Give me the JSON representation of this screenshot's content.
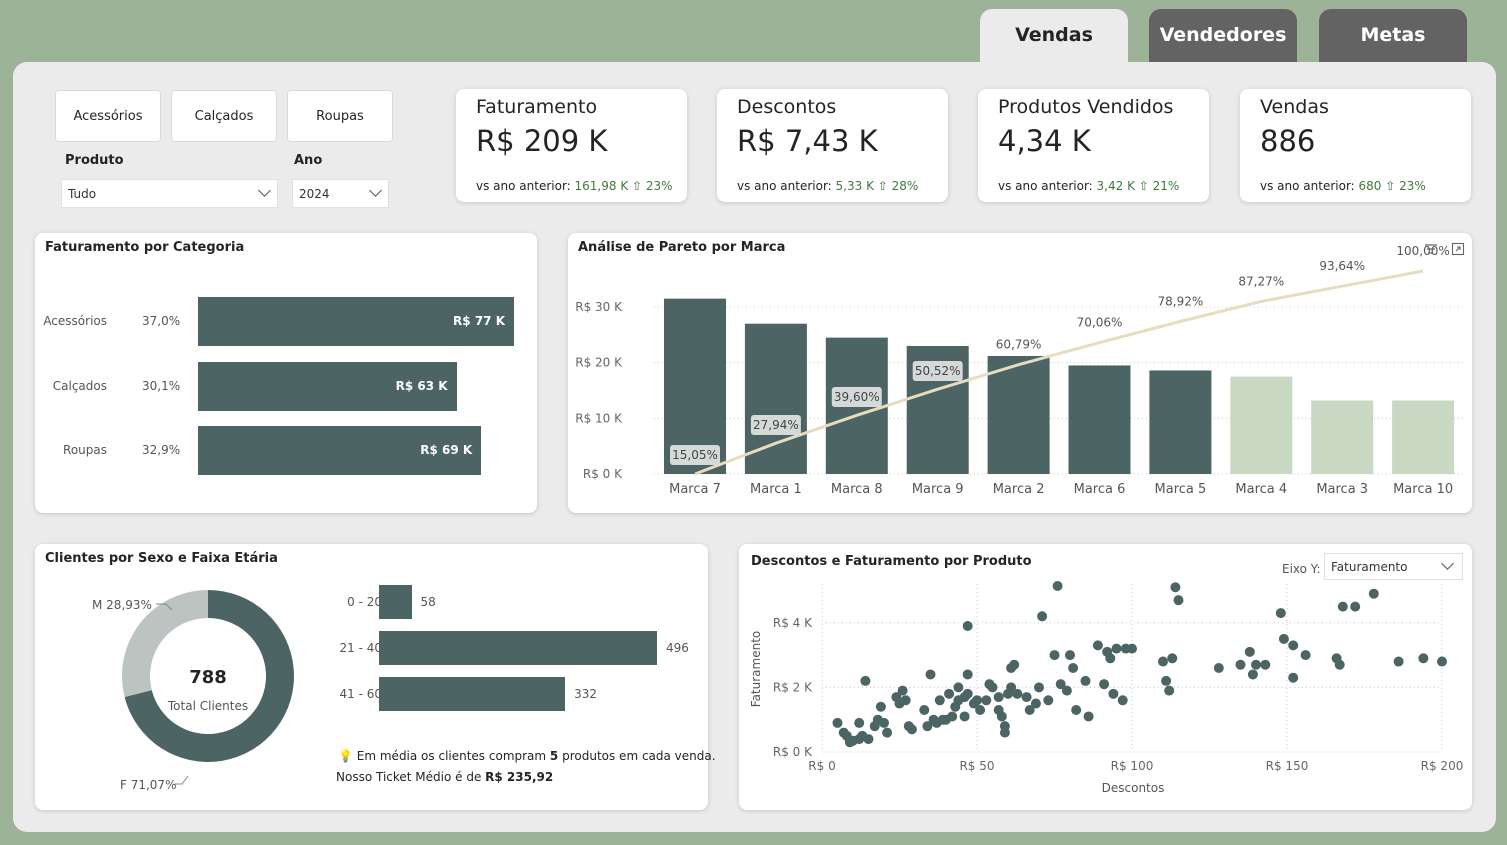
{
  "tabs": [
    {
      "label": "Vendas",
      "active": true
    },
    {
      "label": "Vendedores",
      "active": false
    },
    {
      "label": "Metas",
      "active": false
    }
  ],
  "filters": {
    "category_buttons": [
      "Acessórios",
      "Calçados",
      "Roupas"
    ],
    "produto": {
      "label": "Produto",
      "value": "Tudo"
    },
    "ano": {
      "label": "Ano",
      "value": "2024"
    }
  },
  "kpis": [
    {
      "title": "Faturamento",
      "value": "R$ 209 K",
      "prefix": "vs ano anterior: ",
      "delta": "161,98 K ⇧ 23%"
    },
    {
      "title": "Descontos",
      "value": "R$ 7,43 K",
      "prefix": "vs ano anterior: ",
      "delta": "5,33 K ⇧ 28%"
    },
    {
      "title": "Produtos Vendidos",
      "value": "4,34 K",
      "prefix": "vs ano anterior: ",
      "delta": "3,42 K ⇧ 21%"
    },
    {
      "title": "Vendas",
      "value": "886",
      "prefix": "vs ano anterior: ",
      "delta": "680 ⇧ 23%"
    }
  ],
  "colors": {
    "dark_bar": "#4d6464",
    "light_bar": "#c9d8c3",
    "line": "#e6dcbf",
    "donut_light": "#bcc3c1",
    "positive": "#3f7a3f"
  },
  "categoria": {
    "title": "Faturamento por Categoria",
    "chart_data": {
      "type": "bar",
      "orientation": "horizontal",
      "categories": [
        "Acessórios",
        "Calçados",
        "Roupas"
      ],
      "values": [
        77,
        63,
        69
      ],
      "value_labels": [
        "R$ 77 K",
        "R$ 63 K",
        "R$ 69 K"
      ],
      "share_labels": [
        "37,0%",
        "30,1%",
        "32,9%"
      ]
    }
  },
  "pareto": {
    "title": "Análise de Pareto por Marca",
    "chart_data": {
      "type": "bar",
      "categories": [
        "Marca 7",
        "Marca 1",
        "Marca 8",
        "Marca 9",
        "Marca 2",
        "Marca 6",
        "Marca 5",
        "Marca 4",
        "Marca 3",
        "Marca 10"
      ],
      "values": [
        31.5,
        27,
        24.5,
        23,
        21.2,
        19.5,
        18.6,
        17.5,
        13.2,
        13.2
      ],
      "highlight": [
        true,
        true,
        true,
        true,
        true,
        true,
        true,
        false,
        false,
        false
      ],
      "cumulative_pct": [
        15.05,
        27.94,
        39.6,
        50.52,
        60.79,
        70.06,
        78.92,
        87.27,
        93.64,
        100.0
      ],
      "cumulative_labels": [
        "15,05%",
        "27,94%",
        "39,60%",
        "50,52%",
        "60,79%",
        "70,06%",
        "78,92%",
        "87,27%",
        "93,64%",
        "100,00%"
      ],
      "y_ticks": [
        "R$ 0 K",
        "R$ 10 K",
        "R$ 20 K",
        "R$ 30 K"
      ],
      "y_tick_values": [
        0,
        10,
        20,
        30
      ],
      "ylim": [
        0,
        30
      ],
      "boxed_labels": [
        0,
        1,
        2,
        3
      ]
    }
  },
  "clientes": {
    "title": "Clientes por Sexo e Faixa Etária",
    "total": "788",
    "total_label": "Total Clientes",
    "donut": {
      "chart_data": {
        "type": "pie",
        "categories": [
          "F",
          "M"
        ],
        "values": [
          71.07,
          28.93
        ],
        "labels": [
          "F 71,07%",
          "M 28,93%"
        ]
      }
    },
    "ages": {
      "chart_data": {
        "type": "bar",
        "orientation": "horizontal",
        "categories": [
          "0 - 20",
          "21 - 40",
          "41 - 60"
        ],
        "values": [
          58,
          496,
          332
        ]
      }
    },
    "note_line1_pre": "Em média os clientes compram ",
    "note_line1_bold": "5",
    "note_line1_post": " produtos em cada venda.",
    "note_line2_pre": "Nosso Ticket Médio é de ",
    "note_line2_bold": "R$ 235,92",
    "note_icon": "lightbulb-icon"
  },
  "descontos": {
    "title": "Descontos e Faturamento por Produto",
    "eixo_label": "Eixo Y:",
    "eixo_value": "Faturamento",
    "chart_data": {
      "type": "scatter",
      "xlabel": "Descontos",
      "ylabel": "Faturamento",
      "x_ticks": [
        "R$ 0",
        "R$ 50",
        "R$ 100",
        "R$ 150",
        "R$ 200"
      ],
      "x_tick_values": [
        0,
        50,
        100,
        150,
        200
      ],
      "y_ticks": [
        "R$ 0 K",
        "R$ 2 K",
        "R$ 4 K"
      ],
      "y_tick_values": [
        0,
        2,
        4
      ],
      "xlim": [
        0,
        200
      ],
      "ylim": [
        0,
        5.2
      ],
      "points": [
        [
          5,
          0.9
        ],
        [
          7,
          0.6
        ],
        [
          8,
          0.5
        ],
        [
          9,
          0.3
        ],
        [
          10,
          0.35
        ],
        [
          12,
          0.4
        ],
        [
          12,
          0.9
        ],
        [
          13,
          0.5
        ],
        [
          14,
          2.2
        ],
        [
          15,
          0.4
        ],
        [
          17,
          0.8
        ],
        [
          18,
          1.0
        ],
        [
          19,
          1.4
        ],
        [
          20,
          0.9
        ],
        [
          21,
          0.6
        ],
        [
          24,
          1.7
        ],
        [
          25,
          1.5
        ],
        [
          26,
          1.9
        ],
        [
          27,
          1.6
        ],
        [
          28,
          0.8
        ],
        [
          29,
          0.7
        ],
        [
          33,
          1.3
        ],
        [
          34,
          0.8
        ],
        [
          35,
          2.4
        ],
        [
          36,
          1.0
        ],
        [
          37,
          0.9
        ],
        [
          38,
          1.6
        ],
        [
          39,
          1.0
        ],
        [
          40,
          1.0
        ],
        [
          41,
          1.8
        ],
        [
          42,
          1.1
        ],
        [
          43,
          1.4
        ],
        [
          44,
          1.6
        ],
        [
          44,
          2.0
        ],
        [
          46,
          1.1
        ],
        [
          46,
          1.7
        ],
        [
          47,
          1.8
        ],
        [
          47,
          2.4
        ],
        [
          47,
          3.9
        ],
        [
          49,
          1.5
        ],
        [
          50,
          1.6
        ],
        [
          51,
          1.3
        ],
        [
          53,
          1.6
        ],
        [
          54,
          2.1
        ],
        [
          55,
          2.0
        ],
        [
          57,
          1.7
        ],
        [
          57,
          1.3
        ],
        [
          58,
          1.1
        ],
        [
          59,
          0.8
        ],
        [
          59,
          0.6
        ],
        [
          60,
          1.8
        ],
        [
          61,
          2.0
        ],
        [
          61,
          2.6
        ],
        [
          62,
          2.7
        ],
        [
          63,
          1.8
        ],
        [
          66,
          1.7
        ],
        [
          67,
          1.3
        ],
        [
          69,
          1.5
        ],
        [
          70,
          2.0
        ],
        [
          71,
          4.2
        ],
        [
          73,
          1.6
        ],
        [
          75,
          3.0
        ],
        [
          76,
          5.2
        ],
        [
          77,
          2.1
        ],
        [
          79,
          1.9
        ],
        [
          80,
          3.0
        ],
        [
          81,
          2.6
        ],
        [
          82,
          1.3
        ],
        [
          85,
          2.2
        ],
        [
          86,
          1.1
        ],
        [
          89,
          3.3
        ],
        [
          91,
          2.1
        ],
        [
          92,
          3.1
        ],
        [
          93,
          2.9
        ],
        [
          94,
          1.8
        ],
        [
          95,
          3.2
        ],
        [
          97,
          1.6
        ],
        [
          98,
          3.2
        ],
        [
          100,
          3.2
        ],
        [
          110,
          2.8
        ],
        [
          111,
          2.2
        ],
        [
          112,
          1.9
        ],
        [
          113,
          2.9
        ],
        [
          114,
          5.1
        ],
        [
          115,
          4.7
        ],
        [
          128,
          2.6
        ],
        [
          135,
          2.7
        ],
        [
          138,
          3.1
        ],
        [
          139,
          2.4
        ],
        [
          140,
          2.7
        ],
        [
          143,
          2.7
        ],
        [
          148,
          4.3
        ],
        [
          149,
          3.5
        ],
        [
          152,
          2.3
        ],
        [
          152,
          3.3
        ],
        [
          156,
          3.0
        ],
        [
          166,
          2.9
        ],
        [
          167,
          2.7
        ],
        [
          168,
          4.5
        ],
        [
          172,
          4.5
        ],
        [
          178,
          4.9
        ],
        [
          186,
          2.8
        ],
        [
          194,
          2.9
        ],
        [
          200,
          2.8
        ]
      ]
    }
  }
}
